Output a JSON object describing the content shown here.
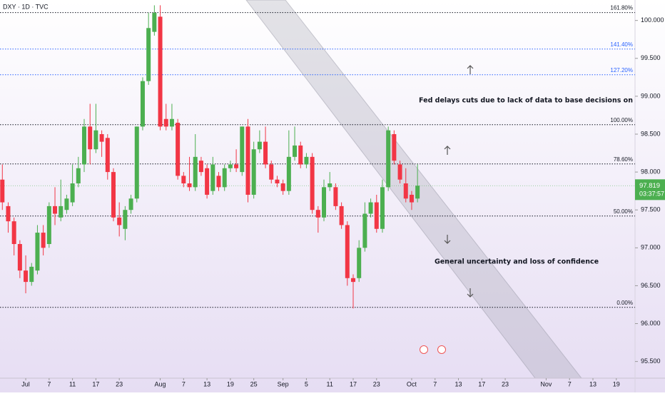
{
  "chart_data": {
    "type": "candlestick",
    "title": "DXY · 1D · TVC",
    "colors": {
      "up": "#4caf50",
      "down": "#f23645"
    },
    "open": [
      97.9,
      97.55,
      97.35,
      97.05,
      96.7,
      96.55,
      96.7,
      97.2,
      97.05,
      97.55,
      97.4,
      97.5,
      97.6,
      97.85,
      98.1,
      98.6,
      98.3,
      98.5,
      98.45,
      98.0,
      97.4,
      97.25,
      97.5,
      97.65,
      98.6,
      99.2,
      99.85,
      100.05,
      98.7,
      98.6,
      98.65,
      97.95,
      97.85,
      97.8,
      98.15,
      98.05,
      97.75,
      97.95,
      97.8,
      98.05,
      98.1,
      98.0,
      98.6,
      97.7,
      98.3,
      98.4,
      98.1,
      97.9,
      97.85,
      97.75,
      98.2,
      98.35,
      98.1,
      98.2,
      97.5,
      97.4,
      97.8,
      97.8,
      97.55,
      97.3,
      96.6,
      96.6,
      97.0,
      97.45,
      97.6,
      97.25,
      97.8,
      98.5,
      98.1,
      97.85,
      97.7,
      97.65
    ],
    "high": [
      98.1,
      97.6,
      97.4,
      97.1,
      96.9,
      96.8,
      97.3,
      97.3,
      97.6,
      97.8,
      97.9,
      97.7,
      98.1,
      98.2,
      98.7,
      98.9,
      98.9,
      98.55,
      98.5,
      98.05,
      97.6,
      97.55,
      97.7,
      98.6,
      99.25,
      100.1,
      100.2,
      100.2,
      98.9,
      98.9,
      98.7,
      98.0,
      98.2,
      98.5,
      98.2,
      98.1,
      98.2,
      98.0,
      98.1,
      98.15,
      98.3,
      98.6,
      98.7,
      98.4,
      98.55,
      98.6,
      98.15,
      97.95,
      97.9,
      98.55,
      98.6,
      98.4,
      98.25,
      98.25,
      97.55,
      97.9,
      98.0,
      97.85,
      97.6,
      97.35,
      96.65,
      97.1,
      97.6,
      97.65,
      97.7,
      97.9,
      98.6,
      98.55,
      98.15,
      98.05,
      97.75,
      98.1
    ],
    "low": [
      97.5,
      97.2,
      96.9,
      96.6,
      96.4,
      96.5,
      96.65,
      96.9,
      97.0,
      97.3,
      97.35,
      97.45,
      97.55,
      97.8,
      98.0,
      98.1,
      98.25,
      98.2,
      97.9,
      97.35,
      97.15,
      97.1,
      97.45,
      97.6,
      98.55,
      99.15,
      99.8,
      98.55,
      98.55,
      98.55,
      97.9,
      97.8,
      97.75,
      97.75,
      97.95,
      97.65,
      97.7,
      97.75,
      97.75,
      98.0,
      98.0,
      97.95,
      97.6,
      97.65,
      98.25,
      98.05,
      97.85,
      97.8,
      97.7,
      97.7,
      98.15,
      98.05,
      98.05,
      97.45,
      97.2,
      97.35,
      97.75,
      97.5,
      97.25,
      96.5,
      96.2,
      96.55,
      96.95,
      97.4,
      97.2,
      97.2,
      97.75,
      98.1,
      97.85,
      97.6,
      97.5,
      97.6
    ],
    "close": [
      97.6,
      97.35,
      97.05,
      96.7,
      96.55,
      96.75,
      97.2,
      97.0,
      97.55,
      97.45,
      97.55,
      97.65,
      97.85,
      98.05,
      98.6,
      98.3,
      98.55,
      98.4,
      98.0,
      97.4,
      97.3,
      97.5,
      97.65,
      98.6,
      99.2,
      99.9,
      100.1,
      98.6,
      98.6,
      98.7,
      97.95,
      97.85,
      97.8,
      98.2,
      98.0,
      97.7,
      98.1,
      97.8,
      98.05,
      98.1,
      98.05,
      98.6,
      97.7,
      98.3,
      98.4,
      98.1,
      97.9,
      97.85,
      97.75,
      98.2,
      98.35,
      98.1,
      98.2,
      97.5,
      97.4,
      97.8,
      97.85,
      97.55,
      97.3,
      96.6,
      96.55,
      97.0,
      97.45,
      97.6,
      97.25,
      97.8,
      98.55,
      98.15,
      97.9,
      97.65,
      97.6,
      97.82
    ],
    "xlim": [
      -0.4,
      108.2
    ],
    "xticks": [
      {
        "value": 4,
        "label": "Jul"
      },
      {
        "value": 8,
        "label": "7"
      },
      {
        "value": 12,
        "label": "11"
      },
      {
        "value": 16,
        "label": "17"
      },
      {
        "value": 20,
        "label": "23"
      },
      {
        "value": 27,
        "label": "Aug"
      },
      {
        "value": 31,
        "label": "7"
      },
      {
        "value": 35,
        "label": "13"
      },
      {
        "value": 39,
        "label": "19"
      },
      {
        "value": 43,
        "label": "25"
      },
      {
        "value": 48,
        "label": "Sep"
      },
      {
        "value": 52,
        "label": "5"
      },
      {
        "value": 56,
        "label": "11"
      },
      {
        "value": 60,
        "label": "17"
      },
      {
        "value": 64,
        "label": "23"
      },
      {
        "value": 70,
        "label": "Oct"
      },
      {
        "value": 74,
        "label": "7"
      },
      {
        "value": 78,
        "label": "13"
      },
      {
        "value": 82,
        "label": "17"
      },
      {
        "value": 86,
        "label": "23"
      },
      {
        "value": 93,
        "label": "Nov"
      },
      {
        "value": 97,
        "label": "7"
      },
      {
        "value": 101,
        "label": "13"
      },
      {
        "value": 105,
        "label": "19"
      }
    ],
    "ylim": [
      95.28,
      100.27
    ],
    "yticks": [
      {
        "value": 95.5,
        "label": "95.500"
      },
      {
        "value": 96,
        "label": "96.000"
      },
      {
        "value": 96.5,
        "label": "96.500"
      },
      {
        "value": 97,
        "label": "97.000"
      },
      {
        "value": 97.5,
        "label": "97.500"
      },
      {
        "value": 98,
        "label": "98.000"
      },
      {
        "value": 98.5,
        "label": "98.500"
      },
      {
        "value": 99,
        "label": "99.000"
      },
      {
        "value": 99.5,
        "label": "99.500"
      },
      {
        "value": 100,
        "label": "100.000"
      }
    ],
    "levels": [
      {
        "value": 100.104,
        "label": "161.80%",
        "color": "#131722"
      },
      {
        "value": 99.623,
        "label": "141.40%",
        "color": "#2962ff"
      },
      {
        "value": 99.284,
        "label": "127.20%",
        "color": "#2962ff"
      },
      {
        "value": 98.625,
        "label": "100.00%",
        "color": "#131722"
      },
      {
        "value": 98.107,
        "label": "78.60%",
        "color": "#131722"
      },
      {
        "value": 97.42,
        "label": "50.00%",
        "color": "#131722"
      },
      {
        "value": 96.215,
        "label": "0.00%",
        "color": "#131722"
      }
    ],
    "last_price": 97.819,
    "countdown": "03:37:57",
    "annotations": [
      "Fed delays cuts due to lack of data to base decisions on",
      "General uncertainty and loss of confidence"
    ]
  }
}
